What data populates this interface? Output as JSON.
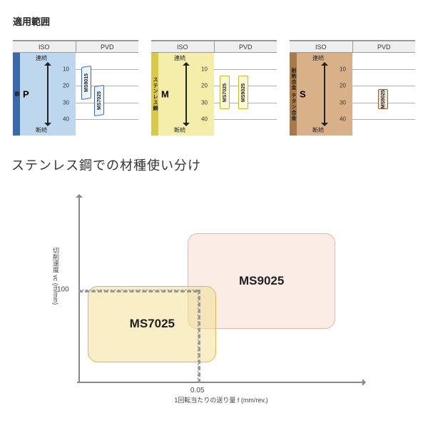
{
  "titles": {
    "top": "適用範囲",
    "sub": "ステンレス鋼での材種使い分け"
  },
  "panel_common": {
    "head_left": "ISO",
    "head_right": "PVD",
    "scale_ticks": [
      10,
      20,
      30,
      40
    ],
    "scale_ymin": 0,
    "scale_ymax": 50,
    "arrow_label_top": "連続",
    "arrow_label_bottom": "断続",
    "gridline_color": "#b0b0b0"
  },
  "panels": [
    {
      "iso_letter": "P",
      "strip_text": "鋼",
      "strip_bg": "#3a6aa8",
      "main_bg": "#bdd7ee",
      "grades": [
        {
          "label": "MS9015",
          "y_from": 8,
          "y_to": 28,
          "x_offset": 8,
          "skew": -8,
          "bg": "#eaf2fb",
          "border": "#3a6aa8"
        },
        {
          "label": "MS7025",
          "y_from": 20,
          "y_to": 38,
          "x_offset": 26,
          "skew": -8,
          "bg": "#eaf2fb",
          "border": "#3a6aa8"
        }
      ]
    },
    {
      "iso_letter": "M",
      "strip_text": "ステンレス鋼",
      "strip_bg": "#d9c94a",
      "main_bg": "#f4eeaa",
      "grades": [
        {
          "label": "MS7025",
          "y_from": 14,
          "y_to": 34,
          "x_offset": 8,
          "skew": 0,
          "bg": "#faf7d2",
          "border": "#c6b62b"
        },
        {
          "label": "MS9025",
          "y_from": 14,
          "y_to": 34,
          "x_offset": 34,
          "skew": 0,
          "bg": "#faf7d2",
          "border": "#c6b62b"
        }
      ]
    },
    {
      "iso_letter": "S",
      "strip_text": "耐熱合金 チタン合金",
      "strip_bg": "#a87a4a",
      "main_bg": "#d8b188",
      "grades": [
        {
          "label": "MS9025",
          "y_from": 22,
          "y_to": 34,
          "x_offset": 36,
          "skew": 0,
          "bg": "#f0e1cf",
          "border": "#8a5f35"
        }
      ]
    }
  ],
  "chart": {
    "ylabel": "切削速度 vc (m/min)",
    "xlabel": "1回転当たりの送り量  f (mm/rev.)",
    "xlim": [
      0,
      0.12
    ],
    "ylim": [
      0,
      200
    ],
    "ytick": {
      "value": 100,
      "label": "100"
    },
    "xtick": {
      "value": 0.05,
      "label": "0.05"
    },
    "regions": [
      {
        "label": "MS7025",
        "x_from": 0.004,
        "x_to": 0.058,
        "y_from": 22,
        "y_to": 104,
        "bg": "rgba(244,224,150,0.55)",
        "border": "#d8b85a"
      },
      {
        "label": "MS9025",
        "x_from": 0.046,
        "x_to": 0.108,
        "y_from": 58,
        "y_to": 160,
        "bg": "rgba(248,220,210,0.55)",
        "border": "#e0b8aa"
      }
    ],
    "dash_color": "#999999"
  }
}
